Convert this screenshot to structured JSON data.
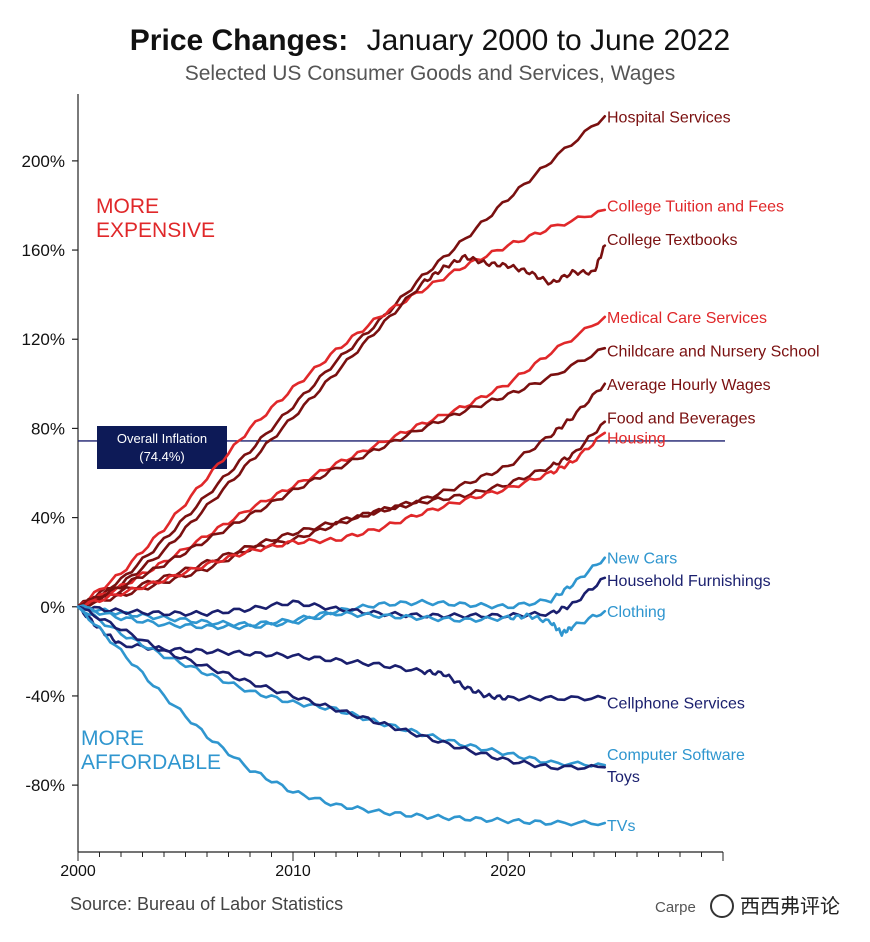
{
  "chart_data": {
    "type": "line",
    "title_bold": "Price Changes:",
    "title_rest": "January 2000 to June 2022",
    "subtitle": "Selected US Consumer Goods and Services, Wages",
    "source": "Source: Bureau of Labor Statistics",
    "credit": "Carpe",
    "watermark": "西西弗评论",
    "xlim": [
      2000,
      2030
    ],
    "ylim": [
      -110,
      230
    ],
    "x_ticks": [
      2000,
      2010,
      2020
    ],
    "y_ticks": [
      {
        "value": 200,
        "label": "200%"
      },
      {
        "value": 160,
        "label": "160%"
      },
      {
        "value": 120,
        "label": "120%"
      },
      {
        "value": 80,
        "label": "80%"
      },
      {
        "value": 40,
        "label": "40%"
      },
      {
        "value": 0,
        "label": "0%"
      },
      {
        "value": -40,
        "label": "-40%"
      },
      {
        "value": -80,
        "label": "-80%"
      }
    ],
    "grid": false,
    "more_expensive": [
      "MORE",
      "EXPENSIVE"
    ],
    "more_affordable": [
      "MORE",
      "AFFORDABLE"
    ],
    "reference_line": {
      "value": 74.4,
      "label_line1": "Overall Inflation",
      "label_line2": "(74.4%)"
    },
    "colors": {
      "dark_red": "#7a1010",
      "red": "#e0282a",
      "navy": "#1a1f6e",
      "light_blue": "#2f96cf",
      "label_red": "#e0282a",
      "label_blue": "#2f96cf"
    },
    "series": [
      {
        "name": "Hospital Services",
        "color": "#7a1010",
        "x": [
          2000,
          2002,
          2004,
          2006,
          2008,
          2010,
          2012,
          2014,
          2016,
          2018,
          2020,
          2022,
          2024.5
        ],
        "y": [
          0,
          12,
          30,
          50,
          70,
          90,
          110,
          128,
          148,
          165,
          183,
          200,
          220
        ]
      },
      {
        "name": "College Tuition and Fees",
        "color": "#e0282a",
        "x": [
          2000,
          2002,
          2004,
          2006,
          2008,
          2010,
          2012,
          2014,
          2016,
          2018,
          2020,
          2022,
          2024.5
        ],
        "y": [
          0,
          15,
          35,
          58,
          80,
          98,
          115,
          130,
          142,
          153,
          162,
          170,
          178
        ]
      },
      {
        "name": "College Textbooks",
        "color": "#7a1010",
        "x": [
          2000,
          2002,
          2004,
          2006,
          2008,
          2010,
          2012,
          2014,
          2016,
          2017,
          2018,
          2019,
          2020,
          2021,
          2022,
          2023,
          2024,
          2024.5
        ],
        "y": [
          0,
          10,
          25,
          45,
          65,
          85,
          105,
          125,
          145,
          152,
          157,
          154,
          153,
          150,
          145,
          150,
          150,
          162
        ]
      },
      {
        "name": "Medical Care Services",
        "color": "#e0282a",
        "x": [
          2000,
          2002,
          2004,
          2006,
          2008,
          2010,
          2012,
          2014,
          2016,
          2018,
          2020,
          2022,
          2024.5
        ],
        "y": [
          0,
          9,
          20,
          32,
          44,
          54,
          64,
          73,
          82,
          90,
          100,
          114,
          130
        ]
      },
      {
        "name": "Childcare and Nursery School",
        "color": "#7a1010",
        "x": [
          2000,
          2002,
          2004,
          2006,
          2008,
          2010,
          2012,
          2014,
          2016,
          2018,
          2020,
          2022,
          2024.5
        ],
        "y": [
          0,
          9,
          19,
          30,
          41,
          52,
          62,
          71,
          80,
          88,
          95,
          103,
          116
        ]
      },
      {
        "name": "Average Hourly Wages",
        "color": "#7a1010",
        "x": [
          2000,
          2002,
          2004,
          2006,
          2008,
          2010,
          2012,
          2014,
          2016,
          2018,
          2020,
          2022,
          2023,
          2024.5
        ],
        "y": [
          0,
          7,
          13,
          20,
          27,
          33,
          38,
          43,
          48,
          55,
          63,
          77,
          85,
          100
        ]
      },
      {
        "name": "Food and Beverages",
        "color": "#7a1010",
        "x": [
          2000,
          2002,
          2004,
          2006,
          2008,
          2010,
          2012,
          2014,
          2016,
          2018,
          2020,
          2022,
          2023,
          2024.5
        ],
        "y": [
          0,
          5,
          11,
          17,
          26,
          30,
          37,
          43,
          47,
          50,
          55,
          63,
          68,
          83
        ]
      },
      {
        "name": "Housing",
        "color": "#e0282a",
        "x": [
          2000,
          2002,
          2004,
          2006,
          2008,
          2010,
          2012,
          2014,
          2016,
          2018,
          2020,
          2022,
          2023,
          2024.5
        ],
        "y": [
          0,
          6,
          12,
          19,
          25,
          29,
          30,
          35,
          42,
          48,
          53,
          60,
          65,
          78
        ]
      },
      {
        "name": "New Cars",
        "color": "#2f96cf",
        "x": [
          2000,
          2002,
          2004,
          2006,
          2008,
          2010,
          2012,
          2014,
          2016,
          2018,
          2020,
          2022,
          2023,
          2024.5
        ],
        "y": [
          0,
          -3,
          -5,
          -7,
          -8,
          -6,
          -2,
          1,
          2,
          1,
          0,
          3,
          10,
          22
        ]
      },
      {
        "name": "Household Furnishings",
        "color": "#1a1f6e",
        "x": [
          2000,
          2002,
          2004,
          2006,
          2008,
          2010,
          2012,
          2014,
          2016,
          2018,
          2020,
          2022,
          2023,
          2024.5
        ],
        "y": [
          0,
          -2,
          -3,
          -3,
          -1,
          2,
          -1,
          -3,
          -4,
          -4,
          -4,
          -3,
          1,
          13
        ]
      },
      {
        "name": "Clothing",
        "color": "#2f96cf",
        "x": [
          2000,
          2002,
          2004,
          2006,
          2008,
          2010,
          2012,
          2014,
          2016,
          2018,
          2020,
          2021,
          2022,
          2022.5,
          2023,
          2024.5
        ],
        "y": [
          0,
          -5,
          -8,
          -9,
          -9,
          -7,
          -3,
          -4,
          -5,
          -6,
          -5,
          -4,
          -7,
          -12,
          -9,
          -2
        ]
      },
      {
        "name": "Cellphone Services",
        "color": "#1a1f6e",
        "x": [
          2000,
          2001,
          2002,
          2004,
          2006,
          2008,
          2010,
          2012,
          2014,
          2016,
          2017,
          2018,
          2019,
          2020,
          2022,
          2024.5
        ],
        "y": [
          0,
          -10,
          -17,
          -19,
          -20,
          -21,
          -22,
          -24,
          -26,
          -29,
          -30,
          -36,
          -40,
          -41,
          -41,
          -41
        ]
      },
      {
        "name": "Computer Software",
        "color": "#2f96cf",
        "x": [
          2000,
          2002,
          2004,
          2006,
          2008,
          2010,
          2012,
          2014,
          2016,
          2018,
          2020,
          2022,
          2024.5
        ],
        "y": [
          0,
          -12,
          -22,
          -30,
          -38,
          -43,
          -46,
          -52,
          -57,
          -62,
          -66,
          -70,
          -71
        ]
      },
      {
        "name": "Toys",
        "color": "#1a1f6e",
        "x": [
          2000,
          2002,
          2004,
          2006,
          2008,
          2010,
          2012,
          2014,
          2016,
          2018,
          2020,
          2022,
          2024.5
        ],
        "y": [
          0,
          -10,
          -20,
          -27,
          -34,
          -40,
          -46,
          -52,
          -58,
          -64,
          -69,
          -72,
          -72
        ]
      },
      {
        "name": "TVs",
        "color": "#2f96cf",
        "x": [
          2000,
          2002,
          2004,
          2006,
          2008,
          2010,
          2012,
          2014,
          2016,
          2018,
          2020,
          2022,
          2024.5
        ],
        "y": [
          0,
          -20,
          -40,
          -58,
          -73,
          -83,
          -89,
          -92,
          -94,
          -95,
          -96,
          -97,
          -97
        ]
      }
    ],
    "series_labels": [
      {
        "name": "Hospital Services",
        "color": "#7a1010",
        "anchor_y": 220
      },
      {
        "name": "College Tuition and Fees",
        "color": "#e0282a",
        "anchor_y": 180
      },
      {
        "name": "College Textbooks",
        "color": "#7a1010",
        "anchor_y": 165
      },
      {
        "name": "Medical Care Services",
        "color": "#e0282a",
        "anchor_y": 130
      },
      {
        "name": "Childcare and Nursery School",
        "color": "#7a1010",
        "anchor_y": 115
      },
      {
        "name": "Average Hourly Wages",
        "color": "#7a1010",
        "anchor_y": 100
      },
      {
        "name": "Food and Beverages",
        "color": "#7a1010",
        "anchor_y": 85
      },
      {
        "name": "Housing",
        "color": "#e0282a",
        "anchor_y": 76
      },
      {
        "name": "New Cars",
        "color": "#2f96cf",
        "anchor_y": 22
      },
      {
        "name": "Household Furnishings",
        "color": "#1a1f6e",
        "anchor_y": 12
      },
      {
        "name": "Clothing",
        "color": "#2f96cf",
        "anchor_y": -2
      },
      {
        "name": "Cellphone Services",
        "color": "#1a1f6e",
        "anchor_y": -43
      },
      {
        "name": "Computer Software",
        "color": "#2f96cf",
        "anchor_y": -66
      },
      {
        "name": "Toys",
        "color": "#1a1f6e",
        "anchor_y": -76
      },
      {
        "name": "TVs",
        "color": "#2f96cf",
        "anchor_y": -98
      }
    ]
  }
}
